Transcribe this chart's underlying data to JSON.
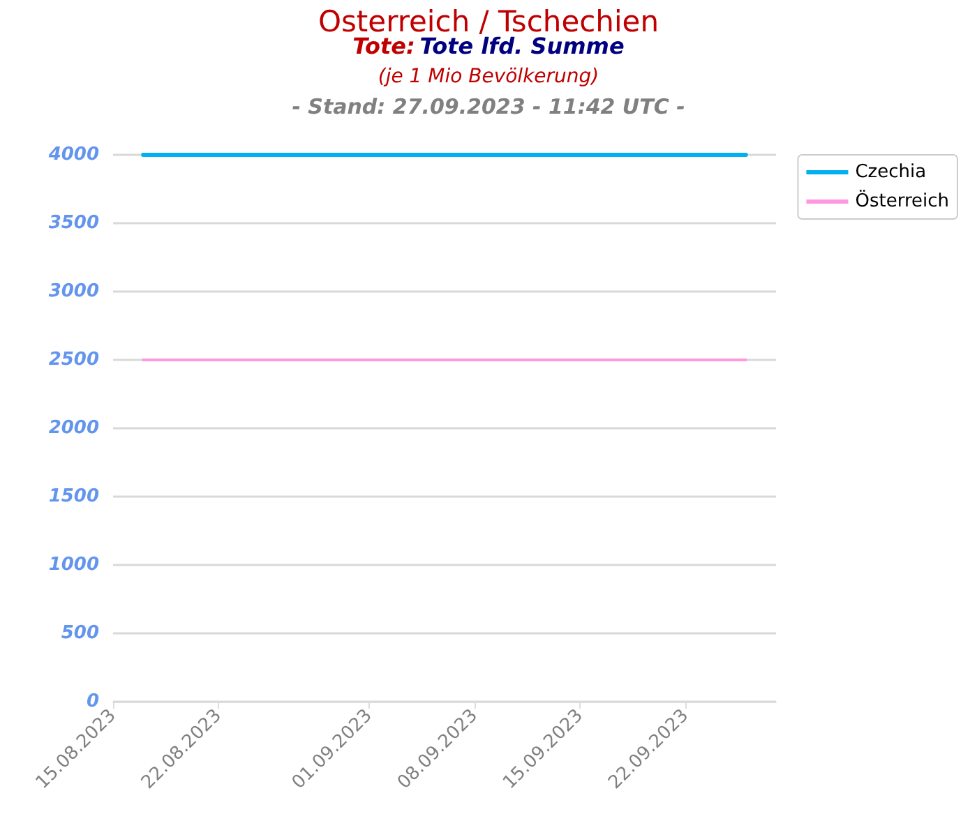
{
  "chart_data": {
    "type": "line",
    "title": "Osterreich / Tschechien",
    "subtitle": "Tote: Tote lfd. Summe",
    "annotations": [
      "(je 1 Mio Bevölkerung)",
      "- Stand: 27.09.2023 - 11:42 UTC -"
    ],
    "series": [
      {
        "name": "Czechia",
        "color": "#00b0f0",
        "x": [
          "2023-08-17",
          "2023-09-26"
        ],
        "values": [
          4000,
          4000
        ]
      },
      {
        "name": "Österreich",
        "color": "#ff99dd",
        "x": [
          "2023-08-17",
          "2023-09-26"
        ],
        "values": [
          2500,
          2500
        ]
      }
    ],
    "xlim": [
      "2023-08-15",
      "2023-09-28"
    ],
    "xticks": [
      {
        "value": "2023-08-15",
        "label": "15.08.2023"
      },
      {
        "value": "2023-08-22",
        "label": "22.08.2023"
      },
      {
        "value": "2023-09-01",
        "label": "01.09.2023"
      },
      {
        "value": "2023-09-08",
        "label": "08.09.2023"
      },
      {
        "value": "2023-09-15",
        "label": "15.09.2023"
      },
      {
        "value": "2023-09-22",
        "label": "22.09.2023"
      }
    ],
    "ylim": [
      0,
      4000
    ],
    "yticks": [
      0,
      500,
      1000,
      1500,
      2000,
      2500,
      3000,
      3500,
      4000
    ],
    "grid": "y",
    "legend": "top right",
    "marker": "none",
    "line_style": "solid"
  }
}
